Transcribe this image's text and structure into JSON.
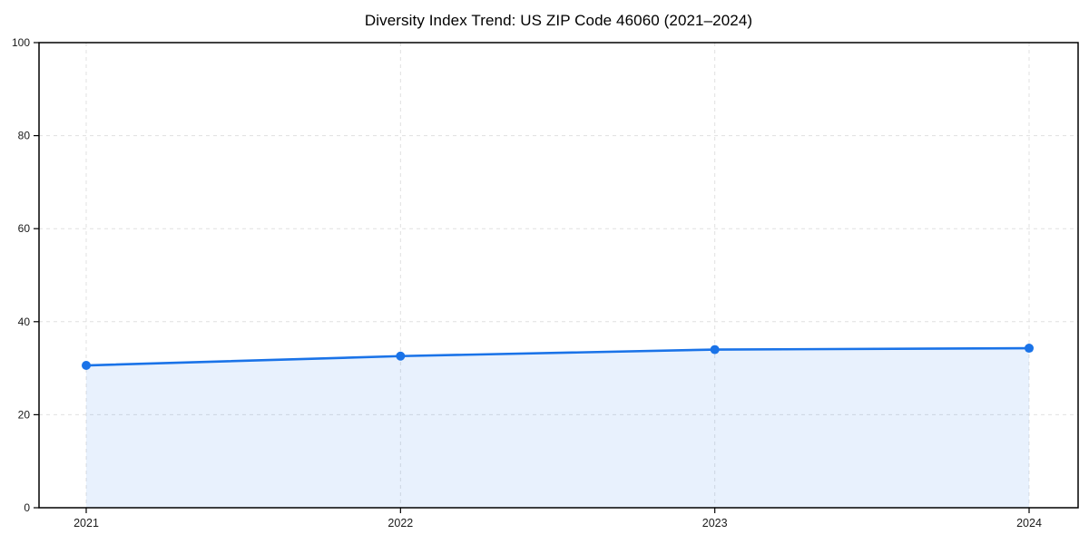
{
  "chart_data": {
    "type": "area",
    "title": "Diversity Index Trend: US ZIP Code 46060 (2021–2024)",
    "categories": [
      "2021",
      "2022",
      "2023",
      "2024"
    ],
    "series": [
      {
        "name": "Diversity Index",
        "values": [
          30.6,
          32.6,
          34.0,
          34.3
        ]
      }
    ],
    "xlabel": "",
    "ylabel": "",
    "ylim": [
      0,
      100
    ],
    "yticks": [
      0,
      20,
      40,
      60,
      80,
      100
    ],
    "grid": "dashed-both-axes",
    "legend": "none",
    "colors": {
      "line": "#1a73e8",
      "marker": "#1a73e8",
      "fill": "rgba(26,115,232,0.10)",
      "grid": "#e0e0e0",
      "axis": "#000000",
      "tick_label": "#1a1a1a",
      "title": "#000000"
    }
  }
}
